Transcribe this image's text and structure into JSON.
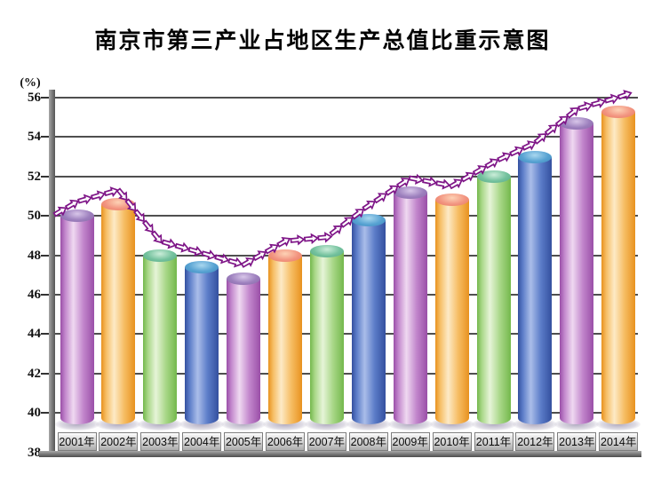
{
  "title": "南京市第三产业占地区生产总值比重示意图",
  "y_axis": {
    "unit_label": "(%)",
    "min": 38,
    "max": 56,
    "tick_step": 2
  },
  "chart_data": {
    "type": "bar",
    "title": "南京市第三产业占地区生产总值比重示意图",
    "xlabel": "",
    "ylabel": "(%)",
    "categories": [
      "2001年",
      "2002年",
      "2003年",
      "2004年",
      "2005年",
      "2006年",
      "2007年",
      "2008年",
      "2009年",
      "2010年",
      "2011年",
      "2012年",
      "2013年",
      "2014年"
    ],
    "values": [
      50.0,
      50.6,
      48.0,
      47.4,
      46.8,
      48.0,
      48.2,
      49.8,
      51.2,
      50.8,
      52.0,
      53.0,
      54.7,
      55.3
    ],
    "ylim": [
      38,
      56
    ],
    "ytick_step": 2,
    "grid": true,
    "legend_position": "none",
    "style": "3d-cylinder bars with dashed hollow-arrow trend chain above tops",
    "bar_color_cycle": [
      "orchid",
      "orange",
      "green",
      "blue"
    ]
  },
  "colors": {
    "trend_arrow_outline": "#7e1587",
    "trend_arrow_fill": "#ffffff",
    "gridline": "#4f4f4f",
    "axis_gray": "#8a8a8a",
    "background": "#ffffff",
    "palette": {
      "orchid": {
        "body_edge": "#9a4fa8",
        "body_mid": "#c286cc",
        "body_light": "#efd9f1",
        "top_outer": "#8a68a8",
        "top_mid": "#9c7fbd",
        "top_light": "#d8c6e9"
      },
      "orange": {
        "body_edge": "#e8921f",
        "body_mid": "#f6bd63",
        "body_light": "#fdeac6",
        "top_outer": "#e87a5e",
        "top_mid": "#f29480",
        "top_light": "#fdd2b5"
      },
      "green": {
        "body_edge": "#74b84c",
        "body_mid": "#a8d787",
        "body_light": "#e6f4d8",
        "top_outer": "#58a986",
        "top_mid": "#73c19d",
        "top_light": "#cbedd9"
      },
      "blue": {
        "body_edge": "#34509f",
        "body_mid": "#5b7cc8",
        "body_light": "#aabde9",
        "top_outer": "#3f8abc",
        "top_mid": "#57a2d2",
        "top_light": "#a9d7ef"
      }
    }
  }
}
